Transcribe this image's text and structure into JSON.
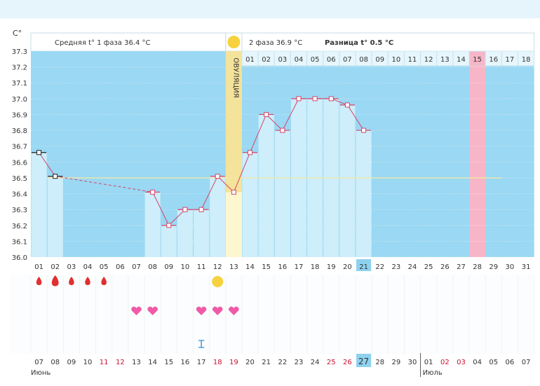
{
  "chart_data": {
    "type": "bar",
    "title": "",
    "ylabel": "C°",
    "ylim": [
      36.0,
      37.3
    ],
    "yticks": [
      "37.3",
      "37.2",
      "37.1",
      "37.0",
      "36.9",
      "36.8",
      "36.7",
      "36.6",
      "36.5",
      "36.4",
      "36.3",
      "36.2",
      "36.1",
      "36.0"
    ],
    "cycle_days": [
      "01",
      "02",
      "03",
      "04",
      "05",
      "06",
      "07",
      "08",
      "09",
      "10",
      "11",
      "12",
      "13",
      "14",
      "15",
      "16",
      "17",
      "18",
      "19",
      "20",
      "21",
      "22",
      "23",
      "24",
      "25",
      "26",
      "27",
      "28",
      "29",
      "30",
      "31"
    ],
    "temperatures": [
      36.66,
      36.51,
      null,
      null,
      null,
      null,
      null,
      36.41,
      36.2,
      36.3,
      36.3,
      36.51,
      36.41,
      36.66,
      36.9,
      36.8,
      37.0,
      37.0,
      37.0,
      36.96,
      36.8,
      null,
      null,
      null,
      null,
      null,
      null,
      null,
      null,
      null,
      null
    ],
    "coverline": 36.5,
    "phase1_label": "Средняя t° 1 фаза 36.4 °C",
    "phase2_label": "2 фаза 36.9 °C",
    "diff_label": "Разница t° 0.5 °C",
    "ovulation_label": "ОВУЛЯЦИЯ",
    "ovulation_day": 13,
    "phase2_days": [
      "01",
      "02",
      "03",
      "04",
      "05",
      "06",
      "07",
      "08",
      "09",
      "10",
      "11",
      "12",
      "13",
      "14",
      "15",
      "16",
      "17",
      "18"
    ],
    "highlighted_phase2_day": "15",
    "highlighted_cycle_day": "21",
    "menstruation_days": [
      1,
      2,
      3,
      4,
      5
    ],
    "intercourse_days": [
      7,
      8,
      11,
      12,
      13
    ],
    "marker_day": 11,
    "calendar_dates": [
      "07",
      "08",
      "09",
      "10",
      "11",
      "12",
      "13",
      "14",
      "15",
      "16",
      "17",
      "18",
      "19",
      "20",
      "21",
      "22",
      "23",
      "24",
      "25",
      "26",
      "27",
      "28",
      "29",
      "30",
      "01",
      "02",
      "03",
      "04",
      "05",
      "06",
      "07"
    ],
    "weekend_indices": [
      4,
      5,
      11,
      12,
      18,
      19,
      25,
      26
    ],
    "highlighted_calendar_index": 20,
    "month_labels": [
      "Июнь",
      "Июль"
    ],
    "colors": {
      "chart_bg": "#9ad8f3",
      "bar": "#cdeefa",
      "ovulation": "#f4e39a",
      "ovulation_low": "#fdf6cf",
      "phase2_highlight": "#f7b6c8",
      "line": "#d6456a",
      "heart": "#f05aa8",
      "drop": "#e03030",
      "sun": "#f7d23e",
      "weekend": "#c8102e"
    }
  }
}
